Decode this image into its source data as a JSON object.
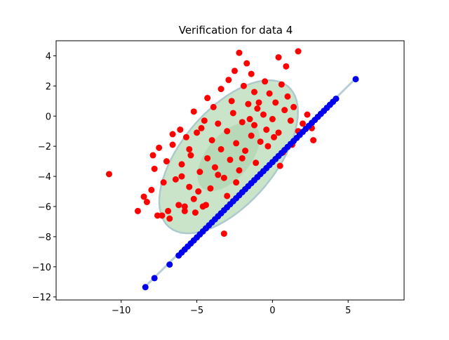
{
  "chart_data": {
    "type": "scatter",
    "title": "Verification for data 4",
    "xlabel": "",
    "ylabel": "",
    "xlim": [
      -14.3,
      8.7
    ],
    "ylim": [
      -12.2,
      5.0
    ],
    "xticks": [
      -10,
      -5,
      0,
      5
    ],
    "yticks": [
      -12,
      -10,
      -8,
      -6,
      -4,
      -2,
      0,
      2,
      4
    ],
    "grid": false,
    "legend": "none",
    "colors": {
      "red_points": "#ff0000",
      "blue_points": "#0000ee",
      "line": "#b8cfd8",
      "ellipse_fill": "#c8e3c8",
      "ellipse_inner_fill": "#b5d7b5",
      "ellipse_edge": "#a8c7cc"
    },
    "ellipse": {
      "center": [
        -2.9,
        -2.7
      ],
      "outer_semi_axes": [
        6.1,
        3.1
      ],
      "inner_semi_axes": [
        2.7,
        1.45
      ],
      "angle_deg": 50
    },
    "line": {
      "x": [
        -8.5,
        5.5
      ],
      "y": [
        -11.4,
        2.5
      ]
    },
    "blue_points": {
      "x": [
        -8.4,
        -7.8,
        -6.8,
        -6.2,
        -6.0,
        -5.8,
        -5.6,
        -5.4,
        -5.2,
        -5.0,
        -4.8,
        -4.6,
        -4.4,
        -4.2,
        -4.0,
        -3.8,
        -3.6,
        -3.4,
        -3.2,
        -3.0,
        -2.8,
        -2.6,
        -2.4,
        -2.2,
        -2.0,
        -1.8,
        -1.6,
        -1.4,
        -1.2,
        -1.0,
        -0.8,
        -0.6,
        -0.4,
        -0.2,
        0.0,
        0.2,
        0.4,
        0.6,
        0.8,
        1.0,
        1.2,
        1.4,
        1.6,
        1.8,
        2.0,
        2.2,
        2.4,
        2.6,
        2.8,
        3.0,
        3.2,
        3.4,
        3.6,
        3.8,
        4.0,
        4.2,
        5.5
      ],
      "y": [
        -11.35,
        -10.75,
        -9.85,
        -9.25,
        -9.05,
        -8.85,
        -8.65,
        -8.45,
        -8.25,
        -8.05,
        -7.85,
        -7.65,
        -7.45,
        -7.25,
        -7.05,
        -6.85,
        -6.65,
        -6.45,
        -6.25,
        -6.05,
        -5.85,
        -5.65,
        -5.45,
        -5.25,
        -5.05,
        -4.85,
        -4.65,
        -4.45,
        -4.25,
        -4.05,
        -3.85,
        -3.65,
        -3.45,
        -3.25,
        -3.05,
        -2.85,
        -2.65,
        -2.45,
        -2.25,
        -2.05,
        -1.85,
        -1.65,
        -1.45,
        -1.25,
        -1.05,
        -0.85,
        -0.65,
        -0.45,
        -0.25,
        -0.05,
        0.15,
        0.35,
        0.55,
        0.75,
        0.95,
        1.15,
        2.45
      ]
    },
    "red_points": {
      "x": [
        -10.8,
        -8.9,
        -8.5,
        -8.3,
        -8.0,
        -7.8,
        -7.6,
        -7.5,
        -7.2,
        -7.0,
        -6.8,
        -6.6,
        -6.4,
        -6.2,
        -6.1,
        -6.0,
        -5.8,
        -5.7,
        -5.5,
        -5.4,
        -5.2,
        -5.0,
        -4.8,
        -4.6,
        -4.5,
        -4.3,
        -4.1,
        -4.0,
        -3.8,
        -3.6,
        -3.4,
        -3.2,
        -3.0,
        -2.8,
        -2.6,
        -2.4,
        -2.2,
        -2.0,
        -1.8,
        -1.6,
        -1.4,
        -1.2,
        -1.0,
        -0.8,
        -0.6,
        -0.4,
        -0.2,
        0.0,
        0.2,
        0.4,
        0.6,
        0.8,
        1.0,
        1.2,
        1.4,
        1.7,
        2.0,
        2.3,
        2.6,
        2.7,
        -3.2,
        -2.2,
        -1.7,
        -1.4,
        0.4,
        0.9,
        1.7,
        -4.3,
        -5.2,
        -6.6,
        -7.9,
        -3.4,
        -2.9,
        -2.5,
        -1.9,
        -1.2,
        -0.5,
        -4.7,
        -5.5,
        -6.0,
        -3.9,
        -2.7,
        -1.5,
        -0.9,
        0.1,
        0.7,
        1.3,
        -2.0,
        -3.6,
        -4.9,
        -5.8,
        -6.9,
        -7.3,
        -1.1,
        -0.3,
        0.5,
        -2.4,
        -3.0,
        -4.4,
        -5.1
      ],
      "y": [
        -3.85,
        -6.3,
        -5.35,
        -5.7,
        -4.9,
        -3.5,
        -6.6,
        -2.1,
        -4.4,
        -3.0,
        -6.8,
        -1.9,
        -4.2,
        -5.9,
        -0.9,
        -3.2,
        -6.3,
        -1.4,
        -4.7,
        -2.6,
        -5.5,
        -1.1,
        -3.7,
        -6.0,
        -0.3,
        -2.8,
        -4.8,
        -1.6,
        -3.4,
        -0.5,
        -2.2,
        -4.1,
        -1.0,
        -2.9,
        0.2,
        -1.8,
        -3.6,
        -0.4,
        -2.3,
        0.8,
        -1.3,
        -0.6,
        0.5,
        -1.7,
        0.1,
        -0.9,
        1.5,
        -0.2,
        0.9,
        -1.1,
        2.1,
        0.4,
        1.3,
        -0.3,
        0.6,
        -1.0,
        -0.5,
        0.1,
        -0.8,
        -1.6,
        -7.8,
        4.2,
        3.5,
        2.8,
        3.9,
        3.3,
        4.3,
        1.2,
        0.3,
        -1.2,
        -2.6,
        1.8,
        2.4,
        3.0,
        2.0,
        1.6,
        2.3,
        -0.8,
        -2.2,
        -4.0,
        0.6,
        1.0,
        -0.2,
        0.9,
        -1.4,
        -2.4,
        -1.9,
        -2.8,
        -3.9,
        -5.0,
        -6.0,
        -6.3,
        -6.6,
        -3.1,
        -2.0,
        -3.3,
        -4.4,
        -5.3,
        -5.9,
        -6.4
      ]
    }
  }
}
